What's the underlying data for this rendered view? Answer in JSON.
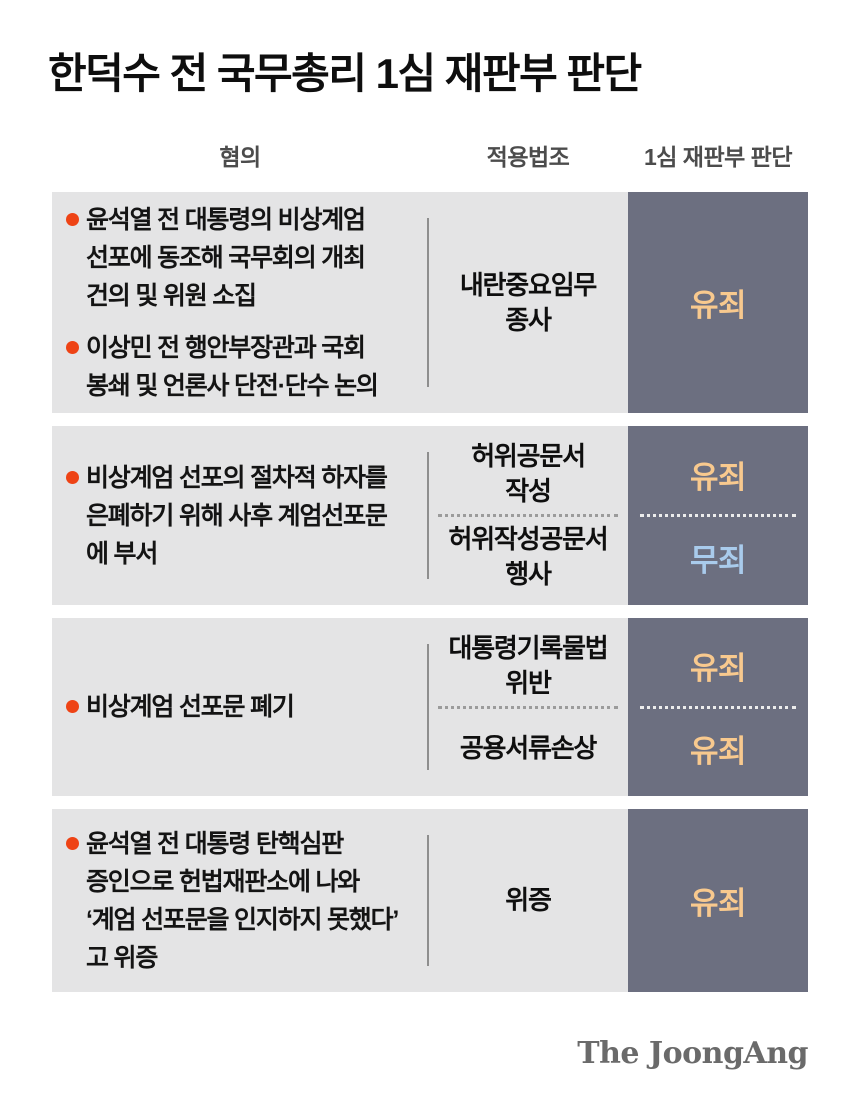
{
  "title": "한덕수 전 국무총리 1심 재판부 판단",
  "columns": {
    "charges": "혐의",
    "law": "적용법조",
    "verdict": "1심 재판부 판단"
  },
  "colors": {
    "row_background": "#e4e4e5",
    "verdict_background": "#6c6f80",
    "guilty_text": "#f8c98e",
    "not_guilty_text": "#a9cbec",
    "bullet": "#ee4315"
  },
  "table": {
    "rows": [
      {
        "charges": [
          "윤석열 전 대통령의 비상계엄\n선포에 동조해 국무회의 개최\n건의 및 위원 소집",
          "이상민 전 행안부장관과 국회\n봉쇄 및 언론사 단전·단수 논의"
        ],
        "entries": [
          {
            "law": "내란중요임무\n종사",
            "verdict": "유죄"
          }
        ]
      },
      {
        "charges": [
          "비상계엄 선포의 절차적 하자를\n은폐하기 위해 사후 계엄선포문\n에 부서"
        ],
        "entries": [
          {
            "law": "허위공문서\n작성",
            "verdict": "유죄"
          },
          {
            "law": "허위작성공문서\n행사",
            "verdict": "무죄"
          }
        ]
      },
      {
        "charges": [
          "비상계엄 선포문 폐기"
        ],
        "entries": [
          {
            "law": "대통령기록물법\n위반",
            "verdict": "유죄"
          },
          {
            "law": "공용서류손상",
            "verdict": "유죄"
          }
        ]
      },
      {
        "charges": [
          "윤석열 전 대통령 탄핵심판\n증인으로 헌법재판소에 나와\n‘계엄 선포문을 인지하지 못했다’\n고 위증"
        ],
        "entries": [
          {
            "law": "위증",
            "verdict": "유죄"
          }
        ]
      }
    ]
  },
  "chart_data": {
    "type": "table",
    "title": "한덕수 전 국무총리 1심 재판부 판단",
    "columns": [
      "혐의",
      "적용법조",
      "1심 재판부 판단"
    ],
    "rows": [
      {
        "charges": [
          "윤석열 전 대통령의 비상계엄 선포에 동조해 국무회의 개최 건의 및 위원 소집",
          "이상민 전 행안부장관과 국회 봉쇄 및 언론사 단전·단수 논의"
        ],
        "laws_and_verdicts": [
          {
            "law": "내란중요임무 종사",
            "verdict": "유죄"
          }
        ]
      },
      {
        "charges": [
          "비상계엄 선포의 절차적 하자를 은폐하기 위해 사후 계엄선포문에 부서"
        ],
        "laws_and_verdicts": [
          {
            "law": "허위공문서 작성",
            "verdict": "유죄"
          },
          {
            "law": "허위작성공문서 행사",
            "verdict": "무죄"
          }
        ]
      },
      {
        "charges": [
          "비상계엄 선포문 폐기"
        ],
        "laws_and_verdicts": [
          {
            "law": "대통령기록물법 위반",
            "verdict": "유죄"
          },
          {
            "law": "공용서류손상",
            "verdict": "유죄"
          }
        ]
      },
      {
        "charges": [
          "윤석열 전 대통령 탄핵심판 증인으로 헌법재판소에 나와 ‘계엄 선포문을 인지하지 못했다’고 위증"
        ],
        "laws_and_verdicts": [
          {
            "law": "위증",
            "verdict": "유죄"
          }
        ]
      }
    ]
  },
  "footer": {
    "logo": "The JoongAng"
  }
}
